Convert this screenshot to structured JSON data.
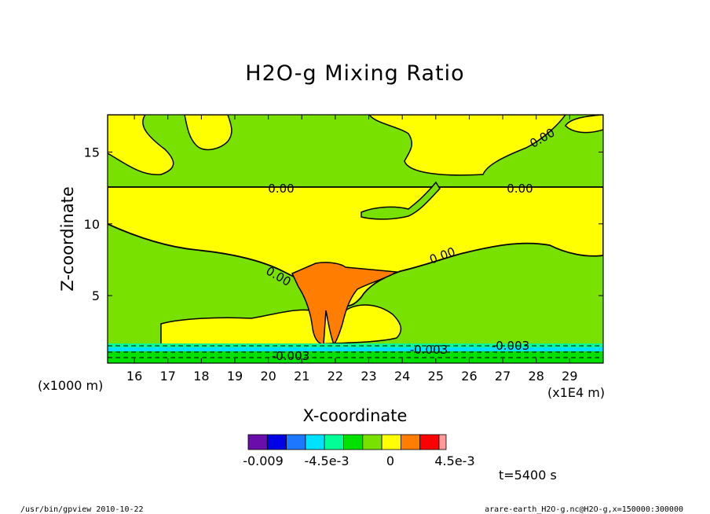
{
  "chart_data": {
    "type": "heatmap",
    "title": "H2O-g Mixing Ratio",
    "xlabel": "X-coordinate",
    "ylabel": "Z-coordinate",
    "x_unit": "(x1000 m)",
    "x_unit_right": "(x1E4 m)",
    "xlim": [
      15.2,
      30.0
    ],
    "ylim": [
      0.3,
      17.6
    ],
    "xticks": [
      "16",
      "17",
      "18",
      "19",
      "20",
      "21",
      "22",
      "23",
      "24",
      "25",
      "26",
      "27",
      "28",
      "29"
    ],
    "yticks": [
      "5",
      "10",
      "15"
    ],
    "contour_labels": [
      "0.00",
      "0.00",
      "0.00",
      "0.00",
      "0.00",
      "-0.003",
      "-0.003",
      "-0.003"
    ],
    "colorbar": {
      "colors": [
        "#6a0daa",
        "#0000e6",
        "#1e78ff",
        "#00e0ff",
        "#00ff96",
        "#00e100",
        "#78e100",
        "#ffff00",
        "#ff7d00",
        "#ff0000",
        "#ff9b9b"
      ],
      "labels": [
        "-0.009",
        "-4.5e-3",
        "0",
        "4.5e-3"
      ]
    },
    "time_label": "t=5400 s",
    "footer_left": "/usr/bin/gpview  2010-10-22",
    "footer_right": "arare-earth_H2O-g.nc@H2O-g,x=150000:300000"
  }
}
